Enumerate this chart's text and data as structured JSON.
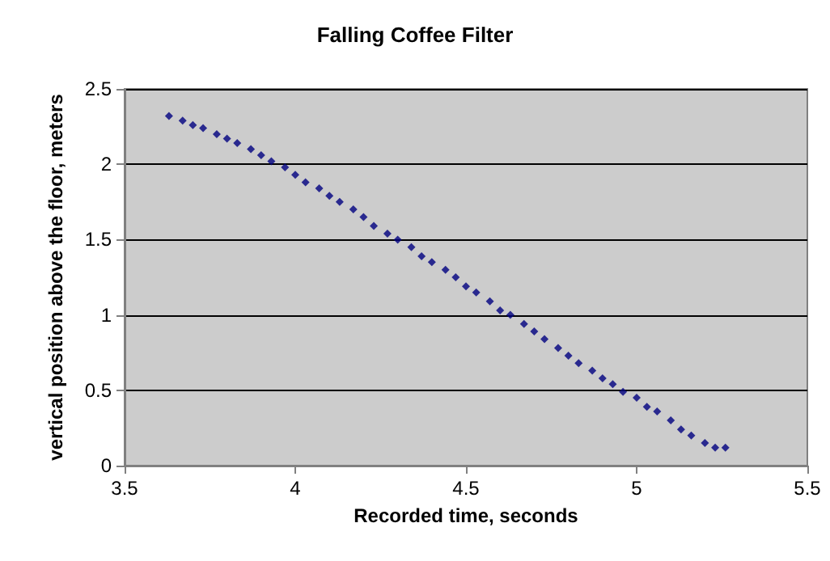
{
  "chart_data": {
    "type": "scatter",
    "title": "Falling Coffee Filter",
    "xlabel": "Recorded time, seconds",
    "ylabel": "vertical position above the floor, meters",
    "xlim": [
      3.5,
      5.5
    ],
    "xticks": [
      3.5,
      4,
      4.5,
      5,
      5.5
    ],
    "ylim": [
      0,
      2.5
    ],
    "yticks": [
      0,
      0.5,
      1,
      1.5,
      2,
      2.5
    ],
    "grid": "y",
    "marker": "diamond",
    "series": [
      {
        "color": "#000080",
        "x": [
          3.63,
          3.67,
          3.7,
          3.73,
          3.77,
          3.8,
          3.83,
          3.87,
          3.9,
          3.93,
          3.97,
          4.0,
          4.03,
          4.07,
          4.1,
          4.13,
          4.17,
          4.2,
          4.23,
          4.27,
          4.3,
          4.34,
          4.37,
          4.4,
          4.44,
          4.47,
          4.5,
          4.53,
          4.57,
          4.6,
          4.63,
          4.67,
          4.7,
          4.73,
          4.77,
          4.8,
          4.83,
          4.87,
          4.9,
          4.93,
          4.96,
          5.0,
          5.03,
          5.06,
          5.1,
          5.13,
          5.16,
          5.2,
          5.23,
          5.26
        ],
        "values": [
          2.32,
          2.29,
          2.26,
          2.24,
          2.2,
          2.17,
          2.14,
          2.1,
          2.06,
          2.02,
          1.98,
          1.93,
          1.88,
          1.84,
          1.79,
          1.75,
          1.7,
          1.65,
          1.59,
          1.54,
          1.5,
          1.45,
          1.39,
          1.35,
          1.3,
          1.25,
          1.19,
          1.15,
          1.09,
          1.03,
          1.0,
          0.94,
          0.89,
          0.84,
          0.78,
          0.73,
          0.68,
          0.63,
          0.58,
          0.54,
          0.49,
          0.45,
          0.39,
          0.36,
          0.3,
          0.24,
          0.2,
          0.15,
          0.12,
          0.12
        ]
      }
    ]
  }
}
